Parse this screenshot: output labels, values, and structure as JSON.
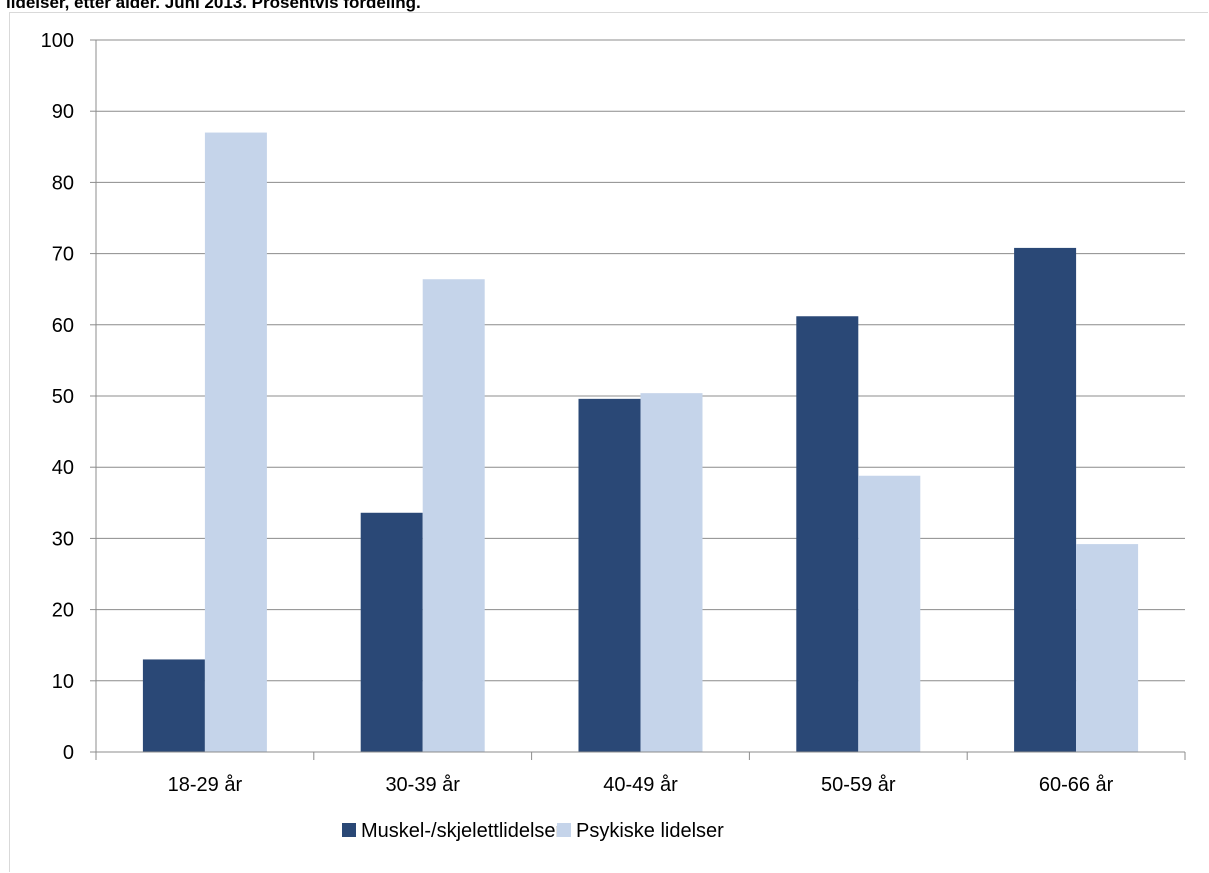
{
  "page": {
    "title_fragment": "lidelser, etter alder. Juni 2013. Prosentvis fordeling."
  },
  "colors": {
    "series_1": "#2a4876",
    "series_2": "#c5d4ea",
    "grid": "#8c8c8c"
  },
  "chart_data": {
    "type": "bar",
    "title": "",
    "xlabel": "",
    "ylabel": "",
    "categories": [
      "18-29 år",
      "30-39 år",
      "40-49 år",
      "50-59 år",
      "60-66 år"
    ],
    "series": [
      {
        "name": "Muskel-/skjelettlidelser",
        "values": [
          13.0,
          33.6,
          49.6,
          61.2,
          70.8
        ]
      },
      {
        "name": "Psykiske lidelser",
        "values": [
          87.0,
          66.4,
          50.4,
          38.8,
          29.2
        ]
      }
    ],
    "ylim": [
      0,
      100
    ],
    "yticks": [
      0,
      10,
      20,
      30,
      40,
      50,
      60,
      70,
      80,
      90,
      100
    ],
    "grid": true,
    "legend_position": "bottom"
  }
}
